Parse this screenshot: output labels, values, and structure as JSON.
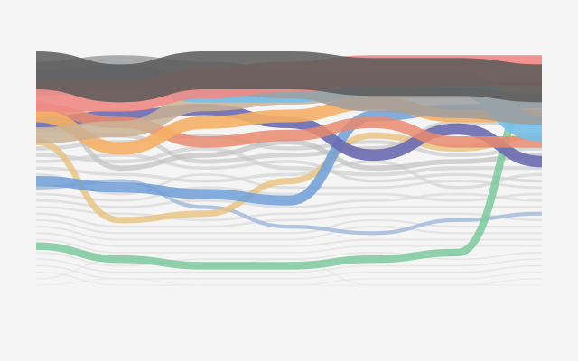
{
  "chart_data": {
    "type": "line",
    "subtype": "bump-chart",
    "title": "",
    "xlabel": "",
    "ylabel": "",
    "grid": false,
    "legend": "none",
    "x": [
      0,
      1,
      2,
      3,
      4,
      5,
      6
    ],
    "y_axis": "rank (1 = top)",
    "ylim": [
      1,
      34
    ],
    "series": [
      {
        "color": "#595959",
        "opacity": 0.85,
        "weight": 3,
        "values": [
          1,
          3,
          1,
          1,
          2,
          2,
          3
        ]
      },
      {
        "color": "#9e9e9e",
        "opacity": 0.85,
        "weight": 2.4,
        "values": [
          2,
          1,
          2,
          3,
          5,
          6,
          7
        ]
      },
      {
        "color": "#ef8a84",
        "opacity": 0.9,
        "weight": 2.4,
        "values": [
          5,
          5,
          3,
          2,
          1,
          1,
          1
        ]
      },
      {
        "color": "#74c0ea",
        "opacity": 0.9,
        "weight": 2,
        "values": [
          3,
          2,
          4,
          4,
          3,
          3,
          10
        ]
      },
      {
        "color": "#c9b094",
        "opacity": 0.85,
        "weight": 1.3,
        "values": [
          11,
          10,
          6,
          5,
          4,
          4,
          4
        ]
      },
      {
        "color": "#f5b065",
        "opacity": 0.9,
        "weight": 1,
        "values": [
          8,
          13,
          9,
          8,
          6,
          8,
          8
        ]
      },
      {
        "color": "#6a6ab0",
        "opacity": 0.9,
        "weight": 0.9,
        "values": [
          9,
          8,
          7,
          9,
          14,
          10,
          15
        ]
      },
      {
        "color": "#e9896e",
        "opacity": 0.85,
        "weight": 0.9,
        "values": [
          7,
          9,
          12,
          11,
          9,
          12,
          12
        ]
      },
      {
        "color": "#6f9fd8",
        "opacity": 0.85,
        "weight": 0.8,
        "values": [
          18,
          19,
          20,
          21,
          8,
          7,
          6
        ]
      },
      {
        "color": "#7cc99c",
        "opacity": 0.85,
        "weight": 0.6,
        "values": [
          28,
          30,
          31,
          31,
          30,
          29,
          2
        ]
      },
      {
        "color": "#e8c27e",
        "opacity": 0.8,
        "weight": 0.5,
        "values": [
          12,
          24,
          23,
          18,
          11,
          13,
          11
        ]
      },
      {
        "color": "#9fb7d9",
        "opacity": 0.8,
        "weight": 0.3,
        "values": [
          19,
          18,
          22,
          25,
          26,
          24,
          23
        ]
      },
      {
        "color": "#c0c0c0",
        "opacity": 0.7,
        "weight": 0.4,
        "values": [
          6,
          16,
          14,
          12,
          16,
          15,
          14
        ]
      },
      {
        "color": "#c8c8c8",
        "opacity": 0.7,
        "weight": 0.35,
        "values": [
          10,
          11,
          15,
          14,
          13,
          9,
          9
        ]
      },
      {
        "color": "#cccccc",
        "opacity": 0.7,
        "weight": 0.3,
        "values": [
          13,
          12,
          11,
          13,
          12,
          14,
          13
        ]
      },
      {
        "color": "#cfcfcf",
        "opacity": 0.7,
        "weight": 0.3,
        "values": [
          14,
          15,
          13,
          16,
          17,
          16,
          16
        ]
      },
      {
        "color": "#d2d2d2",
        "opacity": 0.7,
        "weight": 0.25,
        "values": [
          15,
          14,
          16,
          15,
          18,
          17,
          18
        ]
      },
      {
        "color": "#d4d4d4",
        "opacity": 0.7,
        "weight": 0.25,
        "values": [
          16,
          17,
          18,
          17,
          15,
          19,
          17
        ]
      },
      {
        "color": "#d6d6d6",
        "opacity": 0.7,
        "weight": 0.2,
        "values": [
          17,
          20,
          17,
          19,
          19,
          18,
          19
        ]
      },
      {
        "color": "#d8d8d8",
        "opacity": 0.7,
        "weight": 0.2,
        "values": [
          20,
          21,
          19,
          20,
          20,
          21,
          20
        ]
      },
      {
        "color": "#d9d9d9",
        "opacity": 0.7,
        "weight": 0.2,
        "values": [
          21,
          22,
          21,
          22,
          21,
          20,
          21
        ]
      },
      {
        "color": "#dadada",
        "opacity": 0.7,
        "weight": 0.18,
        "values": [
          22,
          23,
          24,
          23,
          22,
          22,
          22
        ]
      },
      {
        "color": "#dbdbdb",
        "opacity": 0.7,
        "weight": 0.18,
        "values": [
          23,
          25,
          25,
          24,
          23,
          23,
          24
        ]
      },
      {
        "color": "#dcdcdc",
        "opacity": 0.7,
        "weight": 0.15,
        "values": [
          24,
          26,
          26,
          26,
          24,
          25,
          25
        ]
      },
      {
        "color": "#dddddd",
        "opacity": 0.7,
        "weight": 0.15,
        "values": [
          25,
          27,
          27,
          27,
          25,
          26,
          26
        ]
      },
      {
        "color": "#dedede",
        "opacity": 0.7,
        "weight": 0.15,
        "values": [
          26,
          28,
          28,
          28,
          27,
          27,
          27
        ]
      },
      {
        "color": "#dfdfdf",
        "opacity": 0.7,
        "weight": 0.12,
        "values": [
          27,
          29,
          29,
          29,
          28,
          28,
          28
        ]
      },
      {
        "color": "#e0e0e0",
        "opacity": 0.7,
        "weight": 0.12,
        "values": [
          29,
          31,
          30,
          30,
          29,
          30,
          29
        ]
      },
      {
        "color": "#e0e0e0",
        "opacity": 0.7,
        "weight": 0.1,
        "values": [
          30,
          32,
          32,
          32,
          31,
          31,
          30
        ]
      },
      {
        "color": "#e1e1e1",
        "opacity": 0.7,
        "weight": 0.1,
        "values": [
          31,
          33,
          33,
          33,
          32,
          32,
          31
        ]
      },
      {
        "color": "#e2e2e2",
        "opacity": 0.7,
        "weight": 0.08,
        "values": [
          32,
          34,
          34,
          34,
          33,
          33,
          32
        ]
      },
      {
        "color": "#e3e3e3",
        "opacity": 0.7,
        "weight": 0.08,
        "values": [
          33,
          30,
          31,
          30,
          34,
          34,
          33
        ]
      },
      {
        "color": "#e4e4e4",
        "opacity": 0.7,
        "weight": 0.06,
        "values": [
          34,
          33,
          34,
          34,
          34,
          34,
          34
        ]
      }
    ]
  }
}
